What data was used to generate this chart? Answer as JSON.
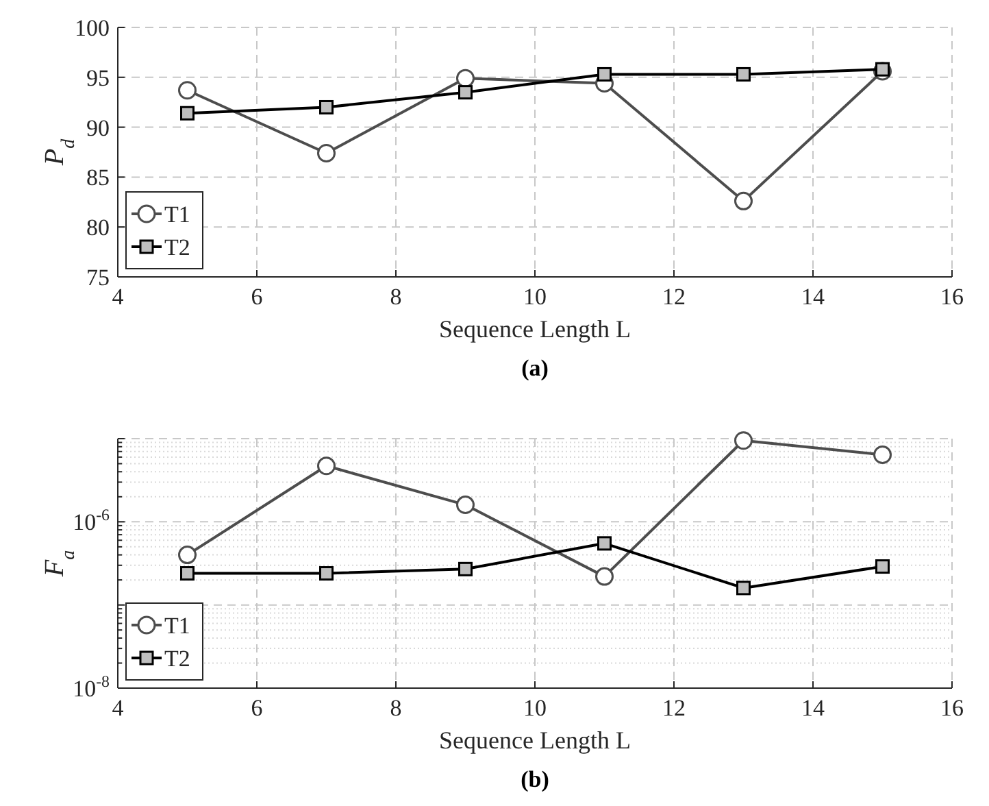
{
  "chart_data": [
    {
      "type": "line",
      "xlabel": "Sequence Length L",
      "ylabel": "P$_{d}$",
      "x": [
        5,
        7,
        9,
        11,
        13,
        15
      ],
      "xlim": [
        4,
        16
      ],
      "xticks": [
        4,
        6,
        8,
        10,
        12,
        14,
        16
      ],
      "ylim": [
        75,
        100
      ],
      "yticks": [
        75,
        80,
        85,
        90,
        95,
        100
      ],
      "grid": true,
      "legend": "bottom left",
      "annotations": [
        "(a)"
      ],
      "series": [
        {
          "name": "T1",
          "color": "#4d4d4d",
          "marker": "circle",
          "values": [
            93.7,
            87.4,
            94.9,
            94.4,
            82.6,
            95.6
          ]
        },
        {
          "name": "T2",
          "color": "#000000",
          "marker": "square",
          "values": [
            91.4,
            92.0,
            93.5,
            95.3,
            95.3,
            95.8
          ]
        }
      ]
    },
    {
      "type": "line",
      "xlabel": "Sequence Length L",
      "ylabel": "F$_{a}$",
      "x": [
        5,
        7,
        9,
        11,
        13,
        15
      ],
      "xlim": [
        4,
        16
      ],
      "xticks": [
        4,
        6,
        8,
        10,
        12,
        14,
        16
      ],
      "ylim": [
        1e-08,
        1e-05
      ],
      "yticks": [
        {
          "value": 1e-08,
          "label": "10$^{-8}$"
        },
        {
          "value": 1e-07,
          "label": null
        },
        {
          "value": 1e-06,
          "label": "10$^{-6}$"
        },
        {
          "value": 1e-05,
          "label": null
        }
      ],
      "log": true,
      "grid": true,
      "legend": "bottom left",
      "annotations": [
        "(b)"
      ],
      "series": [
        {
          "name": "T1",
          "color": "#4d4d4d",
          "marker": "circle",
          "values": [
            4e-07,
            4.7e-06,
            1.6e-06,
            2.2e-07,
            9.5e-06,
            6.4e-06
          ]
        },
        {
          "name": "T2",
          "color": "#000000",
          "marker": "square",
          "values": [
            2.4e-07,
            2.4e-07,
            2.7e-07,
            5.5e-07,
            1.6e-07,
            2.9e-07
          ]
        }
      ]
    }
  ]
}
